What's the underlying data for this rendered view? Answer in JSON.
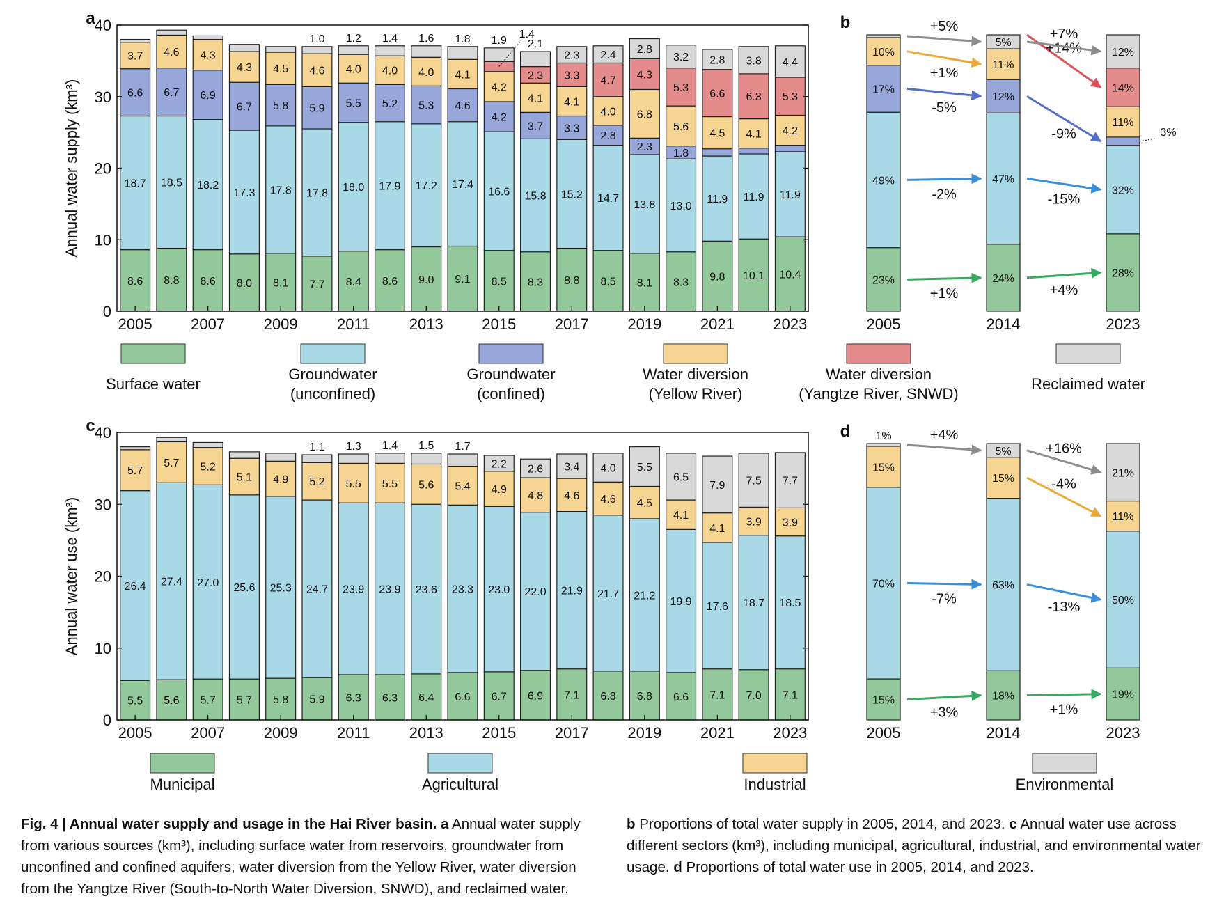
{
  "colors": {
    "surface": "#93c89a",
    "gw_unconfined": "#a9d8e6",
    "gw_confined": "#97a7d9",
    "yellow": "#f6d593",
    "yangtze": "#e48c8c",
    "reclaimed": "#d9d9d9",
    "municipal": "#93c89a",
    "agricultural": "#a9d8e6",
    "industrial": "#f6d593",
    "environmental": "#d9d9d9",
    "arrow_green": "#3aa860",
    "arrow_blue": "#3b8fd6",
    "arrow_indigo": "#5470c6",
    "arrow_orange": "#e9a93b",
    "arrow_red": "#d9535a",
    "arrow_gray": "#8d8d8d"
  },
  "chart_data": [
    {
      "panel": "a",
      "type": "bar",
      "stacked": true,
      "ylabel": "Annual water supply (km³)",
      "ylim": [
        0,
        40
      ],
      "yticks": [
        0,
        10,
        20,
        30,
        40
      ],
      "xtick_labels": [
        "2005",
        "2007",
        "2009",
        "2011",
        "2013",
        "2015",
        "2017",
        "2019",
        "2021",
        "2023"
      ],
      "categories": [
        "2005",
        "2006",
        "2007",
        "2008",
        "2009",
        "2010",
        "2011",
        "2012",
        "2013",
        "2014",
        "2015",
        "2016",
        "2017",
        "2018",
        "2019",
        "2020",
        "2021",
        "2022",
        "2023"
      ],
      "series": [
        {
          "name": "Surface water",
          "color": "surface",
          "values": [
            8.6,
            8.8,
            8.6,
            8.0,
            8.1,
            7.7,
            8.4,
            8.6,
            9.0,
            9.1,
            8.5,
            8.3,
            8.8,
            8.5,
            8.1,
            8.3,
            9.8,
            10.1,
            10.4
          ]
        },
        {
          "name": "Groundwater (unconfined)",
          "color": "gw_unconfined",
          "values": [
            18.7,
            18.5,
            18.2,
            17.3,
            17.8,
            17.8,
            18.0,
            17.9,
            17.2,
            17.4,
            16.6,
            15.8,
            15.2,
            14.7,
            13.8,
            13.0,
            11.9,
            11.9,
            11.9
          ]
        },
        {
          "name": "Groundwater (confined)",
          "color": "gw_confined",
          "values": [
            6.6,
            6.7,
            6.9,
            6.7,
            5.8,
            5.9,
            5.5,
            5.2,
            5.3,
            4.6,
            4.2,
            3.7,
            3.3,
            2.8,
            2.3,
            1.8,
            1.0,
            0.8,
            0.9
          ],
          "labels": [
            "6.6",
            "6.7",
            "6.9",
            "6.7",
            "5.8",
            "5.9",
            "5.5",
            "5.2",
            "5.3",
            "4.6",
            "4.2",
            "3.7",
            "3.3",
            "2.8",
            "2.3",
            "1.8",
            "",
            "",
            ""
          ]
        },
        {
          "name": "Water diversion (Yellow River)",
          "color": "yellow",
          "values": [
            3.7,
            4.6,
            4.3,
            4.3,
            4.5,
            4.6,
            4.0,
            4.0,
            4.0,
            4.1,
            4.2,
            4.1,
            4.1,
            4.0,
            6.8,
            5.6,
            4.5,
            4.1,
            4.2
          ]
        },
        {
          "name": "Water diversion (Yangtze River, SNWD)",
          "color": "yangtze",
          "values": [
            0,
            0,
            0,
            0,
            0,
            0,
            0,
            0,
            0,
            0,
            1.4,
            2.3,
            3.3,
            4.7,
            4.3,
            5.3,
            6.6,
            6.3,
            5.3
          ],
          "labels": [
            "",
            "",
            "",
            "",
            "",
            "",
            "",
            "",
            "",
            "",
            "1.4",
            "2.3",
            "3.3",
            "4.7",
            "4.3",
            "5.3",
            "6.6",
            "6.3",
            "5.3"
          ]
        },
        {
          "name": "Reclaimed water",
          "color": "reclaimed",
          "values": [
            0.4,
            0.7,
            0.5,
            1.0,
            0.8,
            1.0,
            1.2,
            1.4,
            1.6,
            1.8,
            1.9,
            2.1,
            2.3,
            2.4,
            2.8,
            3.2,
            2.8,
            3.8,
            4.4
          ],
          "labels": [
            "",
            "",
            "",
            "",
            "",
            "1.0",
            "1.2",
            "1.4",
            "1.6",
            "1.8",
            "1.9",
            "2.1",
            "2.3",
            "2.4",
            "2.8",
            "3.2",
            "2.8",
            "3.8",
            "4.4"
          ]
        }
      ]
    },
    {
      "panel": "b",
      "type": "bar",
      "stacked": true,
      "normalized": true,
      "categories": [
        "2005",
        "2014",
        "2023"
      ],
      "series": [
        {
          "name": "Surface water",
          "color": "surface",
          "values": [
            23,
            24,
            28
          ],
          "labels": [
            "23%",
            "24%",
            "28%"
          ]
        },
        {
          "name": "Groundwater (unconfined)",
          "color": "gw_unconfined",
          "values": [
            49,
            47,
            32
          ],
          "labels": [
            "49%",
            "47%",
            "32%"
          ]
        },
        {
          "name": "Groundwater (confined)",
          "color": "gw_confined",
          "values": [
            17,
            12,
            3
          ],
          "labels": [
            "17%",
            "12%",
            ""
          ]
        },
        {
          "name": "Water diversion (Yellow River)",
          "color": "yellow",
          "values": [
            10,
            11,
            11
          ],
          "labels": [
            "10%",
            "11%",
            "11%"
          ]
        },
        {
          "name": "Water diversion (Yangtze River, SNWD)",
          "color": "yangtze",
          "values": [
            0,
            0,
            14
          ],
          "labels": [
            "",
            "",
            "14%"
          ]
        },
        {
          "name": "Reclaimed water",
          "color": "reclaimed",
          "values": [
            1,
            5,
            12
          ],
          "labels": [
            "",
            "5%",
            "12%"
          ]
        }
      ],
      "callout_3": "3%",
      "changes": [
        {
          "series": 0,
          "from": 0,
          "text": "+1%",
          "color": "arrow_green"
        },
        {
          "series": 0,
          "from": 1,
          "text": "+4%",
          "color": "arrow_green"
        },
        {
          "series": 1,
          "from": 0,
          "text": "-2%",
          "color": "arrow_blue"
        },
        {
          "series": 1,
          "from": 1,
          "text": "-15%",
          "color": "arrow_blue"
        },
        {
          "series": 2,
          "from": 0,
          "text": "-5%",
          "color": "arrow_indigo"
        },
        {
          "series": 2,
          "from": 1,
          "text": "-9%",
          "color": "arrow_indigo"
        },
        {
          "series": 3,
          "from": 0,
          "text": "+1%",
          "color": "arrow_orange"
        },
        {
          "series": 4,
          "from": 1,
          "text": "+14%",
          "color": "arrow_red"
        },
        {
          "series": 5,
          "from": 0,
          "text": "+5%",
          "color": "arrow_gray"
        },
        {
          "series": 5,
          "from": 1,
          "text": "+7%",
          "color": "arrow_gray"
        }
      ]
    },
    {
      "panel": "c",
      "type": "bar",
      "stacked": true,
      "ylabel": "Annual water use (km³)",
      "ylim": [
        0,
        40
      ],
      "yticks": [
        0,
        10,
        20,
        30,
        40
      ],
      "xtick_labels": [
        "2005",
        "2007",
        "2009",
        "2011",
        "2013",
        "2015",
        "2017",
        "2019",
        "2021",
        "2023"
      ],
      "categories": [
        "2005",
        "2006",
        "2007",
        "2008",
        "2009",
        "2010",
        "2011",
        "2012",
        "2013",
        "2014",
        "2015",
        "2016",
        "2017",
        "2018",
        "2019",
        "2020",
        "2021",
        "2022",
        "2023"
      ],
      "series": [
        {
          "name": "Municipal",
          "color": "municipal",
          "values": [
            5.5,
            5.6,
            5.7,
            5.7,
            5.8,
            5.9,
            6.3,
            6.3,
            6.4,
            6.6,
            6.7,
            6.9,
            7.1,
            6.8,
            6.8,
            6.6,
            7.1,
            7.0,
            7.1
          ]
        },
        {
          "name": "Agricultural",
          "color": "agricultural",
          "values": [
            26.4,
            27.4,
            27.0,
            25.6,
            25.3,
            24.7,
            23.9,
            23.9,
            23.6,
            23.3,
            23.0,
            22.0,
            21.9,
            21.7,
            21.2,
            19.9,
            17.6,
            18.7,
            18.5
          ]
        },
        {
          "name": "Industrial",
          "color": "industrial",
          "values": [
            5.7,
            5.7,
            5.2,
            5.1,
            4.9,
            5.2,
            5.5,
            5.5,
            5.6,
            5.4,
            4.9,
            4.8,
            4.6,
            4.6,
            4.5,
            4.1,
            4.1,
            3.9,
            3.9
          ]
        },
        {
          "name": "Environmental",
          "color": "environmental",
          "values": [
            0.4,
            0.6,
            0.7,
            0.9,
            1.1,
            1.1,
            1.3,
            1.4,
            1.5,
            1.7,
            2.2,
            2.6,
            3.4,
            4.0,
            5.5,
            6.5,
            7.9,
            7.5,
            7.7
          ],
          "labels": [
            "",
            "",
            "",
            "",
            "",
            "1.1",
            "1.3",
            "1.4",
            "1.5",
            "1.7",
            "2.2",
            "2.6",
            "3.4",
            "4.0",
            "5.5",
            "6.5",
            "7.9",
            "7.5",
            "7.7"
          ]
        }
      ]
    },
    {
      "panel": "d",
      "type": "bar",
      "stacked": true,
      "normalized": true,
      "categories": [
        "2005",
        "2014",
        "2023"
      ],
      "series": [
        {
          "name": "Municipal",
          "color": "municipal",
          "values": [
            15,
            18,
            19
          ],
          "labels": [
            "15%",
            "18%",
            "19%"
          ]
        },
        {
          "name": "Agricultural",
          "color": "agricultural",
          "values": [
            70,
            63,
            50
          ],
          "labels": [
            "70%",
            "63%",
            "50%"
          ]
        },
        {
          "name": "Industrial",
          "color": "industrial",
          "values": [
            15,
            15,
            11
          ],
          "labels": [
            "15%",
            "15%",
            "11%"
          ]
        },
        {
          "name": "Environmental",
          "color": "environmental",
          "values": [
            1,
            5,
            21
          ],
          "labels": [
            "1%",
            "5%",
            "21%"
          ]
        }
      ],
      "changes": [
        {
          "series": 0,
          "from": 0,
          "text": "+3%",
          "color": "arrow_green"
        },
        {
          "series": 0,
          "from": 1,
          "text": "+1%",
          "color": "arrow_green"
        },
        {
          "series": 1,
          "from": 0,
          "text": "-7%",
          "color": "arrow_blue"
        },
        {
          "series": 1,
          "from": 1,
          "text": "-13%",
          "color": "arrow_blue"
        },
        {
          "series": 2,
          "from": 1,
          "text": "-4%",
          "color": "arrow_orange"
        },
        {
          "series": 3,
          "from": 0,
          "text": "+4%",
          "color": "arrow_gray"
        },
        {
          "series": 3,
          "from": 1,
          "text": "+16%",
          "color": "arrow_gray"
        }
      ]
    }
  ],
  "legend_supply": [
    {
      "label": "Surface water",
      "color": "surface"
    },
    {
      "label": "Groundwater\n(unconfined)",
      "color": "gw_unconfined"
    },
    {
      "label": "Groundwater\n(confined)",
      "color": "gw_confined"
    },
    {
      "label": "Water diversion\n(Yellow River)",
      "color": "yellow"
    },
    {
      "label": "Water diversion\n(Yangtze River, SNWD)",
      "color": "yangtze"
    },
    {
      "label": "Reclaimed water",
      "color": "reclaimed"
    }
  ],
  "legend_use": [
    {
      "label": "Municipal",
      "color": "municipal"
    },
    {
      "label": "Agricultural",
      "color": "agricultural"
    },
    {
      "label": "Industrial",
      "color": "industrial"
    },
    {
      "label": "Environmental",
      "color": "environmental"
    }
  ],
  "caption": {
    "fig_label": "Fig. 4 | Annual water supply and usage in the Hai River basin.",
    "a_label": "a",
    "a_text": "Annual water supply from various sources (km³), including surface water from reservoirs, groundwater from unconfined and confined aquifers, water diversion from the Yellow River, water diversion from the Yangtze River (South-to-North Water Diversion, SNWD), and reclaimed water.",
    "b_label": "b",
    "b_text": "Proportions of total water supply in 2005, 2014, and 2023.",
    "c_label": "c",
    "c_text": "Annual water use across different sectors (km³), including municipal, agricultural, industrial, and environmental water usage.",
    "d_label": "d",
    "d_text": "Proportions of total water use in 2005, 2014, and 2023."
  }
}
